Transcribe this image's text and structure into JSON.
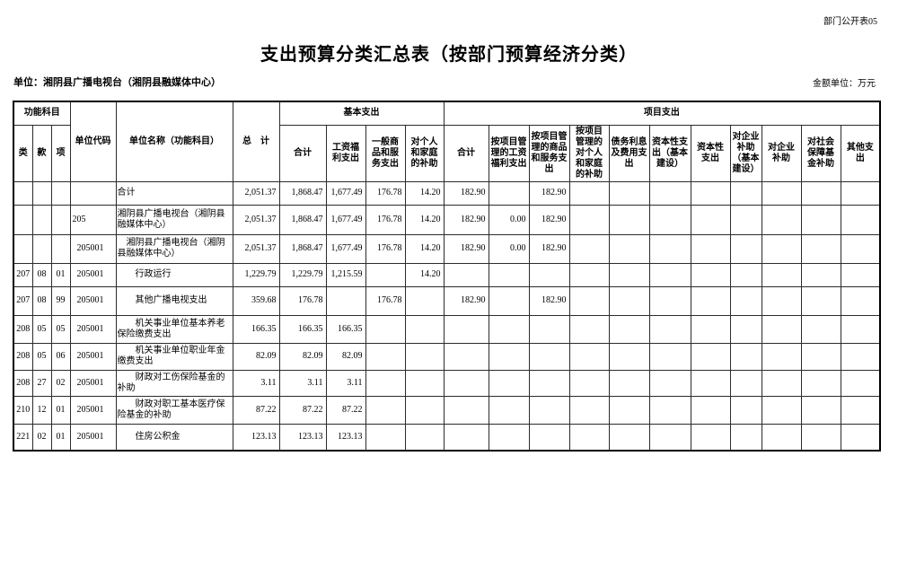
{
  "page": {
    "doc_label": "部门公开表05",
    "title": "支出预算分类汇总表（按部门预算经济分类）",
    "unit_label": "单位：湘阴县广播电视台（湘阴县融媒体中心）",
    "amount_unit_label": "金额单位：万元"
  },
  "table": {
    "header": {
      "func_group": "功能科目",
      "cls": "类",
      "sec": "款",
      "item": "项",
      "unit_code": "单位代码",
      "unit_name": "单位名称（功能科目）",
      "total": "总　计",
      "basic_group": "基本支出",
      "basic_cols": [
        "合计",
        "工资福利支出",
        "一般商品和服务支出",
        "对个人和家庭的补助"
      ],
      "project_group": "项目支出",
      "project_cols": [
        "合计",
        "按项目管理的工资福利支出",
        "按项目管理的商品和服务支出",
        "按项目管理的对个人和家庭的补助",
        "债务利息及费用支出",
        "资本性支出（基本建设）",
        "资本性支出",
        "对企业补助（基本建设）",
        "对企业补助",
        "对社会保障基金补助",
        "其他支出"
      ]
    },
    "rows": [
      [
        "",
        "",
        "",
        "",
        "合计",
        "2,051.37",
        "1,868.47",
        "1,677.49",
        "176.78",
        "14.20",
        "182.90",
        "",
        "182.90",
        "",
        "",
        "",
        "",
        "",
        "",
        "",
        ""
      ],
      [
        "",
        "",
        "",
        "205",
        "湘阴县广播电视台（湘阴县融媒体中心）",
        "2,051.37",
        "1,868.47",
        "1,677.49",
        "176.78",
        "14.20",
        "182.90",
        "0.00",
        "182.90",
        "",
        "",
        "",
        "",
        "",
        "",
        "",
        ""
      ],
      [
        "",
        "",
        "",
        "  205001",
        "　湘阴县广播电视台（湘阴县融媒体中心）",
        "2,051.37",
        "1,868.47",
        "1,677.49",
        "176.78",
        "14.20",
        "182.90",
        "0.00",
        "182.90",
        "",
        "",
        "",
        "",
        "",
        "",
        "",
        ""
      ],
      [
        "207",
        "08",
        "01",
        "  205001",
        "　　行政运行",
        "1,229.79",
        "1,229.79",
        "1,215.59",
        "",
        "14.20",
        "",
        "",
        "",
        "",
        "",
        "",
        "",
        "",
        "",
        "",
        ""
      ],
      [
        "207",
        "08",
        "99",
        "  205001",
        "　　其他广播电视支出",
        "359.68",
        "176.78",
        "",
        "176.78",
        "",
        "182.90",
        "",
        "182.90",
        "",
        "",
        "",
        "",
        "",
        "",
        "",
        ""
      ],
      [
        "208",
        "05",
        "05",
        "  205001",
        "　　机关事业单位基本养老保险缴费支出",
        "166.35",
        "166.35",
        "166.35",
        "",
        "",
        "",
        "",
        "",
        "",
        "",
        "",
        "",
        "",
        "",
        "",
        ""
      ],
      [
        "208",
        "05",
        "06",
        "  205001",
        "　　机关事业单位职业年金缴费支出",
        "82.09",
        "82.09",
        "82.09",
        "",
        "",
        "",
        "",
        "",
        "",
        "",
        "",
        "",
        "",
        "",
        "",
        ""
      ],
      [
        "208",
        "27",
        "02",
        "  205001",
        "　　财政对工伤保险基金的补助",
        "3.11",
        "3.11",
        "3.11",
        "",
        "",
        "",
        "",
        "",
        "",
        "",
        "",
        "",
        "",
        "",
        "",
        ""
      ],
      [
        "210",
        "12",
        "01",
        "  205001",
        "　　财政对职工基本医疗保险基金的补助",
        "87.22",
        "87.22",
        "87.22",
        "",
        "",
        "",
        "",
        "",
        "",
        "",
        "",
        "",
        "",
        "",
        "",
        ""
      ],
      [
        "221",
        "02",
        "01",
        "  205001",
        "　　住房公积金",
        "123.13",
        "123.13",
        "123.13",
        "",
        "",
        "",
        "",
        "",
        "",
        "",
        "",
        "",
        "",
        "",
        "",
        ""
      ]
    ]
  }
}
